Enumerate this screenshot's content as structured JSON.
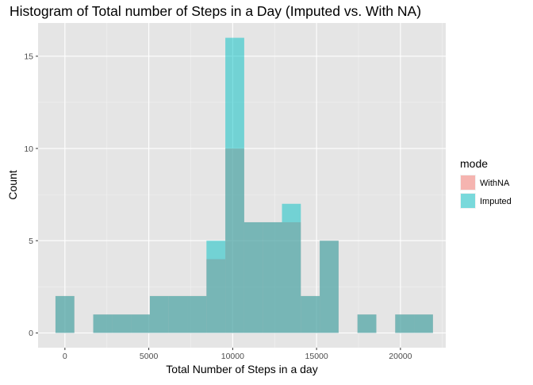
{
  "chart_data": {
    "type": "bar",
    "title": "Histogram of Total number of Steps in a Day (Imputed vs. With NA)",
    "xlabel": "Total Number of Steps in a day",
    "ylabel": "Count",
    "xlim": [
      -1600,
      22700
    ],
    "ylim": [
      -0.8,
      16.8
    ],
    "x_ticks": [
      0,
      5000,
      10000,
      15000,
      20000
    ],
    "x_tick_labels": [
      "0",
      "5000",
      "10000",
      "15000",
      "20000"
    ],
    "y_ticks": [
      0,
      5,
      10,
      15
    ],
    "y_tick_labels": [
      "0",
      "5",
      "10",
      "15"
    ],
    "bin_width": 1125,
    "bins_x0": [
      -562.5,
      562.5,
      1687.5,
      2812.5,
      3937.5,
      5062.5,
      6187.5,
      7312.5,
      8437.5,
      9562.5,
      10687.5,
      11812.5,
      12937.5,
      14062.5,
      15187.5,
      16312.5,
      17437.5,
      18562.5,
      19687.5,
      20812.5
    ],
    "series": [
      {
        "name": "WithNA",
        "color": "#F8766D",
        "values": [
          2,
          0,
          1,
          1,
          1,
          2,
          2,
          2,
          4,
          10,
          6,
          6,
          6,
          2,
          5,
          0,
          1,
          0,
          1,
          1
        ]
      },
      {
        "name": "Imputed",
        "color": "#00BFC4",
        "values": [
          2,
          0,
          1,
          1,
          1,
          2,
          2,
          2,
          5,
          16,
          6,
          6,
          7,
          2,
          5,
          0,
          1,
          0,
          1,
          1
        ]
      }
    ],
    "bar_opacity": 0.5,
    "panel_background": "#E5E5E5",
    "grid": true,
    "legend": {
      "title": "mode",
      "placement": "right",
      "entries": [
        "WithNA",
        "Imputed"
      ]
    }
  }
}
